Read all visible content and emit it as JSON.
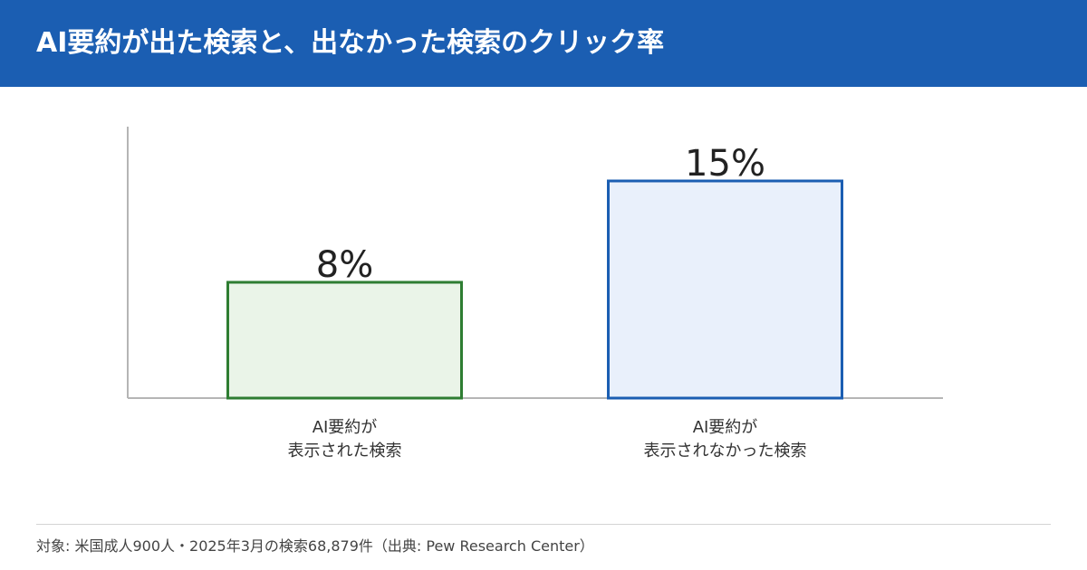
{
  "header": {
    "title": "AI要約が出た検索と、出なかった検索のクリック率"
  },
  "chart_data": {
    "type": "bar",
    "title": "AI要約が出た検索と、出なかった検索のクリック率",
    "xlabel": "",
    "ylabel": "",
    "ylim": [
      0,
      18.75
    ],
    "grid": false,
    "categories": [
      [
        "AI要約が",
        "表示された検索"
      ],
      [
        "AI要約が",
        "表示されなかった検索"
      ]
    ],
    "values": [
      8,
      15
    ],
    "value_labels": [
      "8%",
      "15%"
    ],
    "colors": {
      "fills": [
        "#eaf4e8",
        "#e9f0fb"
      ],
      "strokes": [
        "#2e7d32",
        "#1b5eb2"
      ]
    }
  },
  "footer": {
    "note": "対象: 米国成人900人・2025年3月の検索68,879件（出典: Pew Research Center）"
  },
  "colors": {
    "header_bg": "#1b5eb2",
    "axis": "#b5b5b5",
    "text": "#222222"
  }
}
